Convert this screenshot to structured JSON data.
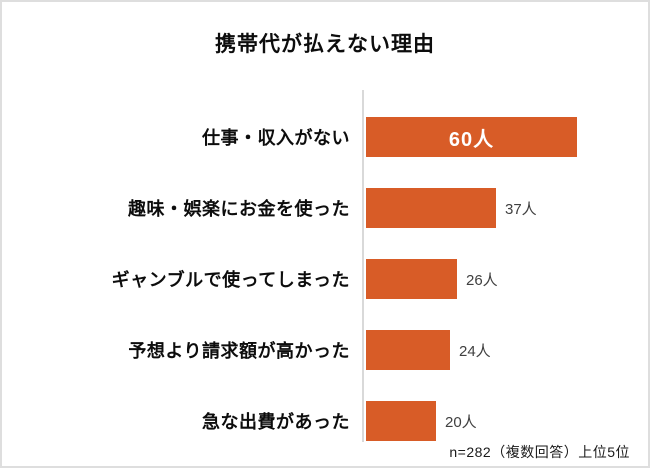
{
  "page": {
    "title": "携帯代が払えない理由",
    "footnote": "n=282（複数回答）上位5位"
  },
  "chart_data": {
    "type": "bar",
    "orientation": "horizontal",
    "title": "携帯代が払えない理由",
    "categories": [
      "仕事・収入がない",
      "趣味・娯楽にお金を使った",
      "ギャンブルで使ってしまった",
      "予想より請求額が高かった",
      "急な出費があった"
    ],
    "values": [
      60,
      37,
      26,
      24,
      20
    ],
    "unit": "人",
    "xlim": [
      0,
      60
    ],
    "grid": false,
    "legend": "none",
    "note": "n=282（複数回答）上位5位",
    "colors": {
      "bar": "#d85c27",
      "axis_line": "#d9d9d9",
      "value_inside": "#ffffff",
      "value_outside": "#404040",
      "title": "#0d0d0d"
    },
    "rows": [
      {
        "label": "仕事・収入がない",
        "value": 60,
        "value_label_inside": "60人",
        "value_label_outside": ""
      },
      {
        "label": "趣味・娯楽にお金を使った",
        "value": 37,
        "value_label_inside": "",
        "value_label_outside": "37人"
      },
      {
        "label": "ギャンブルで使ってしまった",
        "value": 26,
        "value_label_inside": "",
        "value_label_outside": "26人"
      },
      {
        "label": "予想より請求額が高かった",
        "value": 24,
        "value_label_inside": "",
        "value_label_outside": "24人"
      },
      {
        "label": "急な出費があった",
        "value": 20,
        "value_label_inside": "",
        "value_label_outside": "20人"
      }
    ]
  }
}
